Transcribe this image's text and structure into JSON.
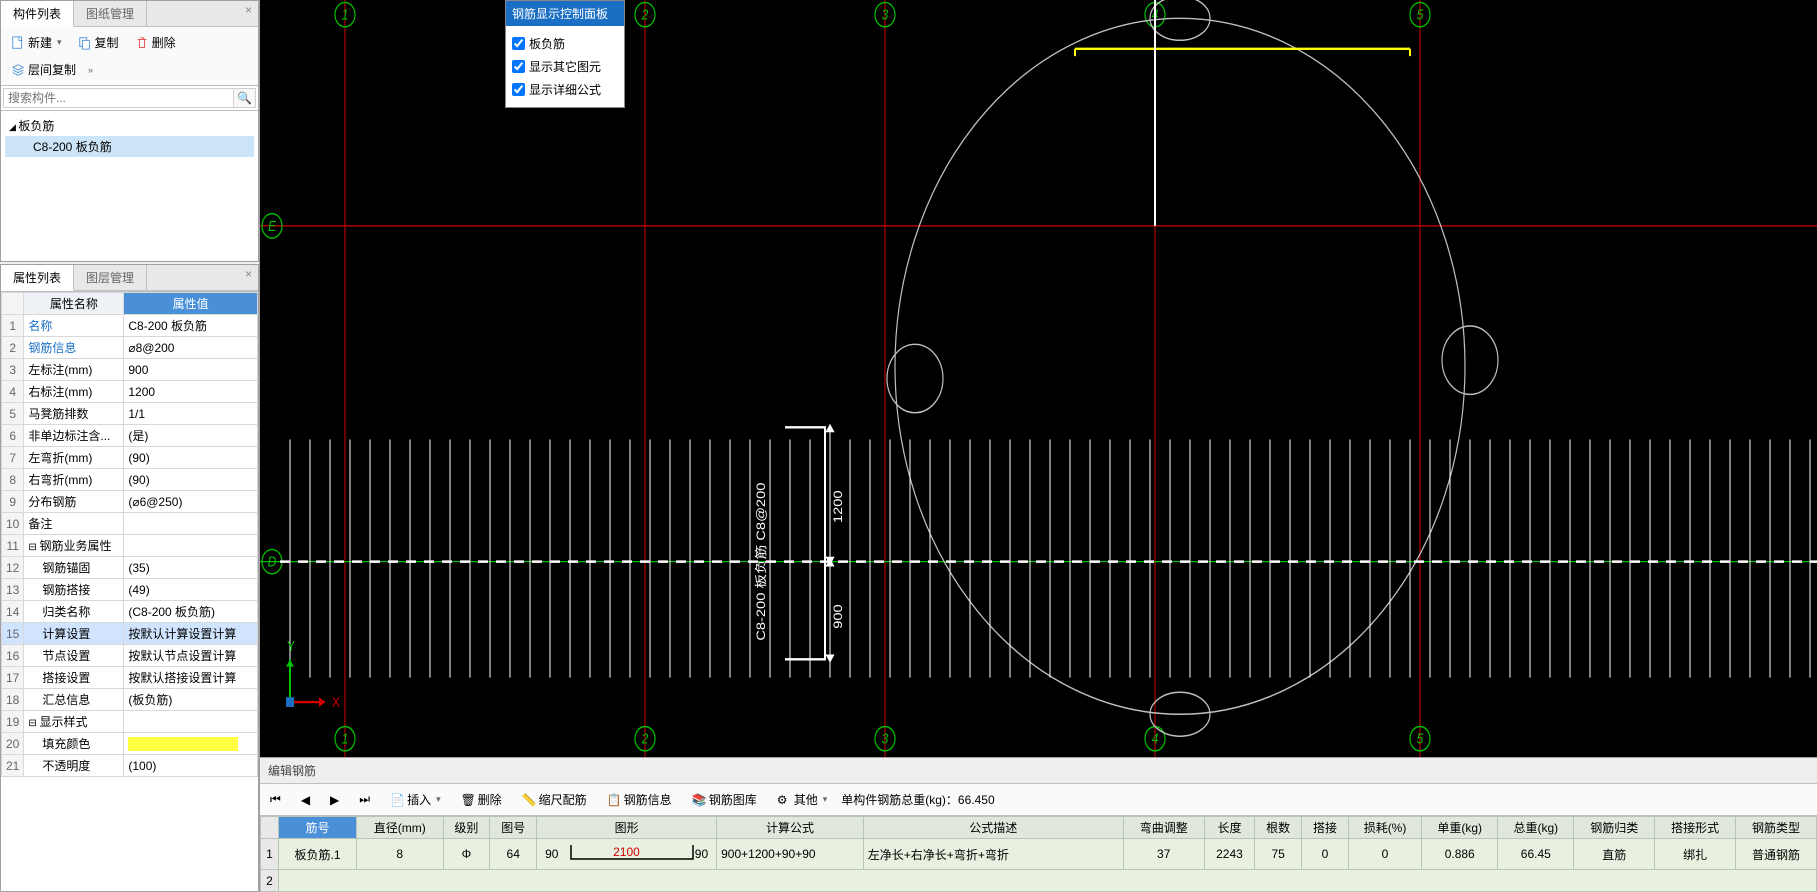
{
  "top_panel": {
    "tabs": [
      "构件列表",
      "图纸管理"
    ],
    "active_tab": 0,
    "toolbar": {
      "new": "新建",
      "copy": "复制",
      "delete": "删除",
      "layer_copy": "层间复制"
    },
    "search_placeholder": "搜索构件...",
    "tree": {
      "root": "板负筋",
      "child": "C8-200 板负筋"
    }
  },
  "prop_panel": {
    "tabs": [
      "属性列表",
      "图层管理"
    ],
    "active_tab": 0,
    "header_name": "属性名称",
    "header_value": "属性值",
    "rows": [
      {
        "n": "1",
        "name": "名称",
        "value": "C8-200 板负筋",
        "link": true
      },
      {
        "n": "2",
        "name": "钢筋信息",
        "value": "⌀8@200",
        "link": true
      },
      {
        "n": "3",
        "name": "左标注(mm)",
        "value": "900"
      },
      {
        "n": "4",
        "name": "右标注(mm)",
        "value": "1200"
      },
      {
        "n": "5",
        "name": "马凳筋排数",
        "value": "1/1"
      },
      {
        "n": "6",
        "name": "非单边标注含...",
        "value": "(是)"
      },
      {
        "n": "7",
        "name": "左弯折(mm)",
        "value": "(90)"
      },
      {
        "n": "8",
        "name": "右弯折(mm)",
        "value": "(90)"
      },
      {
        "n": "9",
        "name": "分布钢筋",
        "value": "(⌀6@250)"
      },
      {
        "n": "10",
        "name": "备注",
        "value": ""
      },
      {
        "n": "11",
        "name": "钢筋业务属性",
        "value": "",
        "grp": true
      },
      {
        "n": "12",
        "name": "钢筋锚固",
        "value": "(35)",
        "indent": true
      },
      {
        "n": "13",
        "name": "钢筋搭接",
        "value": "(49)",
        "indent": true
      },
      {
        "n": "14",
        "name": "归类名称",
        "value": "(C8-200 板负筋)",
        "indent": true
      },
      {
        "n": "15",
        "name": "计算设置",
        "value": "按默认计算设置计算",
        "indent": true,
        "sel": true
      },
      {
        "n": "16",
        "name": "节点设置",
        "value": "按默认节点设置计算",
        "indent": true
      },
      {
        "n": "17",
        "name": "搭接设置",
        "value": "按默认搭接设置计算",
        "indent": true
      },
      {
        "n": "18",
        "name": "汇总信息",
        "value": "(板负筋)",
        "indent": true
      },
      {
        "n": "19",
        "name": "显示样式",
        "value": "",
        "grp": true
      },
      {
        "n": "20",
        "name": "填充颜色",
        "value": "",
        "indent": true,
        "swatch": "#ffff40"
      },
      {
        "n": "21",
        "name": "不透明度",
        "value": "(100)",
        "indent": true
      }
    ]
  },
  "float_panel": {
    "title": "钢筋显示控制面板",
    "opts": [
      "板负筋",
      "显示其它图元",
      "显示详细公式"
    ]
  },
  "canvas": {
    "grid_labels_v": [
      "1",
      "2",
      "3",
      "4",
      "5"
    ],
    "grid_labels_h": [
      "E",
      "D"
    ],
    "rebar_label": "C8-200 板负筋 C8@200",
    "dim_top": "1200",
    "dim_bot": "900",
    "axis": {
      "x": "X",
      "y": "Y"
    },
    "colors": {
      "bg": "#000000",
      "grid_red": "#d40000",
      "grid_green": "#00c000",
      "circle": "#c0c0c0",
      "rebar": "#ffffff",
      "highlight": "#ffff00"
    }
  },
  "bottom": {
    "title": "编辑钢筋",
    "toolbar": {
      "insert": "插入",
      "delete": "删除",
      "scale": "缩尺配筋",
      "info": "钢筋信息",
      "lib": "钢筋图库",
      "other": "其他",
      "total_label": "单构件钢筋总重(kg)：",
      "total_value": "66.450"
    },
    "headers": [
      "筋号",
      "直径(mm)",
      "级别",
      "图号",
      "图形",
      "计算公式",
      "公式描述",
      "弯曲调整",
      "长度",
      "根数",
      "搭接",
      "损耗(%)",
      "单重(kg)",
      "总重(kg)",
      "钢筋归类",
      "搭接形式",
      "钢筋类型"
    ],
    "row": {
      "n": "1",
      "id": "板负筋.1",
      "dia": "8",
      "grade": "Φ",
      "fig": "64",
      "shape_l": "90",
      "shape_mid": "2100",
      "shape_r": "90",
      "formula": "900+1200+90+90",
      "desc": "左净长+右净长+弯折+弯折",
      "bend": "37",
      "len": "2243",
      "cnt": "75",
      "lap": "0",
      "loss": "0",
      "uw": "0.886",
      "tw": "66.45",
      "cat": "直筋",
      "laptype": "绑扎",
      "type": "普通钢筋"
    }
  }
}
